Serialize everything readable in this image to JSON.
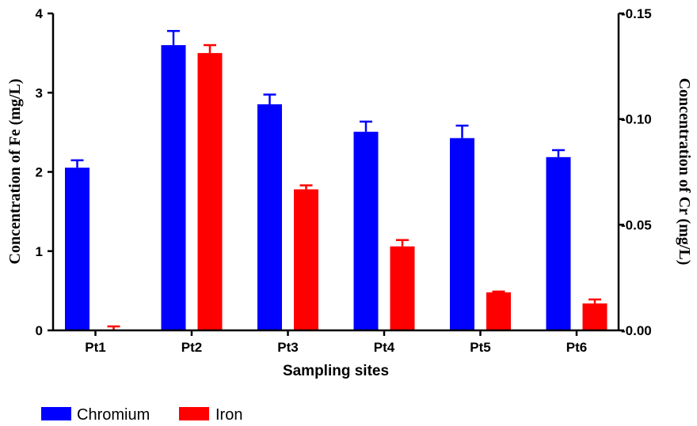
{
  "chart_data": {
    "type": "bar",
    "categories": [
      "Pt1",
      "Pt2",
      "Pt3",
      "Pt4",
      "Pt5",
      "Pt6"
    ],
    "xlabel": "Sampling sites",
    "ylabel_left": "Concentration of Fe (mg/L)",
    "ylabel_right": "Concentration of  Cr (mg/L)",
    "ylim_left": [
      0,
      4
    ],
    "ylim_right": [
      0,
      0.15
    ],
    "yticks_left": [
      "0",
      "1",
      "2",
      "3",
      "4"
    ],
    "yticks_right": [
      "0.00",
      "0.05",
      "0.10",
      "0.15"
    ],
    "series": [
      {
        "name": "Chromium",
        "color": "#0000ff",
        "axis": "right",
        "values": [
          0.077,
          0.135,
          0.107,
          0.094,
          0.091,
          0.082
        ],
        "errors": [
          0.0035,
          0.0067,
          0.0046,
          0.0048,
          0.0059,
          0.0033
        ]
      },
      {
        "name": "Iron",
        "color": "#ff0000",
        "axis": "left",
        "values": [
          0.01,
          3.5,
          1.78,
          1.06,
          0.48,
          0.34
        ],
        "errors": [
          0.04,
          0.1,
          0.05,
          0.08,
          0.01,
          0.05
        ]
      }
    ],
    "grid": false,
    "legend": "bottom-left"
  }
}
